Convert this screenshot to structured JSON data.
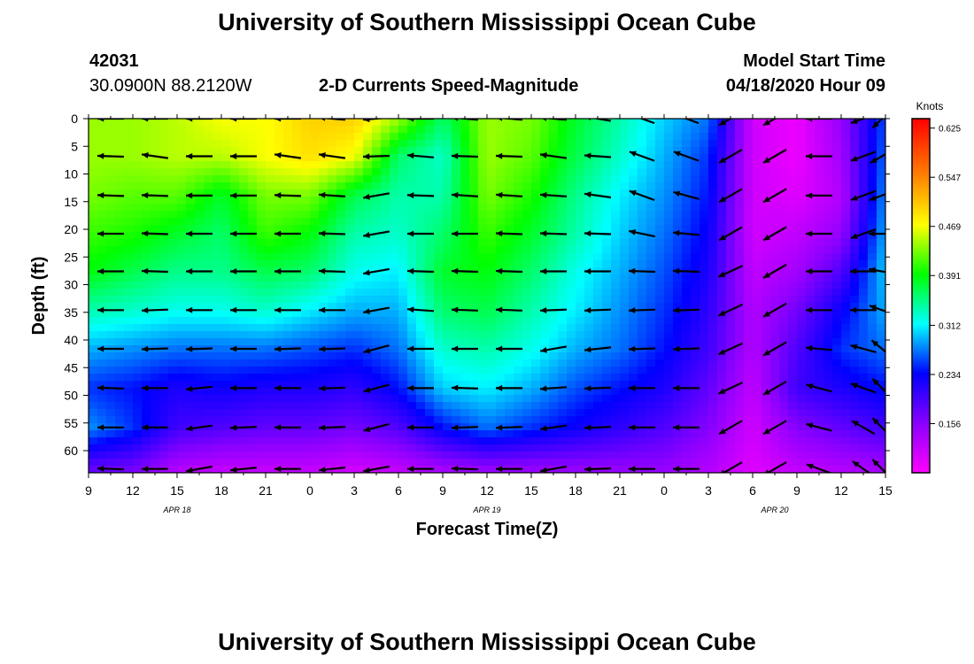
{
  "page": {
    "title_top": "University of Southern Mississippi Ocean Cube",
    "title_bottom": "University of Southern Mississippi Ocean Cube",
    "station_id": "42031",
    "station_location": "30.0900N 88.2120W",
    "model_start_label": "Model Start Time",
    "model_start_value": "04/18/2020 Hour 09"
  },
  "chart_data": {
    "type": "heatmap",
    "title": "2-D Currents Speed-Magnitude",
    "xlabel": "Forecast Time(Z)",
    "ylabel": "Depth (ft)",
    "x_tick_labels": [
      "9",
      "12",
      "15",
      "18",
      "21",
      "0",
      "3",
      "6",
      "9",
      "12",
      "15",
      "18",
      "21",
      "0",
      "3",
      "6",
      "9",
      "12",
      "15"
    ],
    "date_labels": [
      {
        "text": "APR 18",
        "tick_index": 2
      },
      {
        "text": "APR 19",
        "tick_index": 9
      },
      {
        "text": "APR 20",
        "tick_index": 15.5
      }
    ],
    "xlim_hours": [
      0,
      54
    ],
    "y_ticks": [
      0,
      5,
      10,
      15,
      20,
      25,
      30,
      35,
      40,
      45,
      50,
      55,
      60
    ],
    "ylim": [
      0,
      64
    ],
    "y_inverted": true,
    "colorbar": {
      "unit": "Knots",
      "tick_labels": [
        "0.625",
        "0.547",
        "0.469",
        "0.391",
        "0.312",
        "0.234",
        "0.156"
      ],
      "range": [
        0.078,
        0.64
      ]
    },
    "columns_hours": [
      0,
      3,
      6,
      9,
      12,
      15,
      18,
      21,
      24,
      27,
      30,
      33,
      36,
      39,
      42,
      45,
      48,
      51,
      54
    ],
    "row_depths_ft": [
      0,
      6.8,
      13.9,
      20.8,
      27.6,
      34.6,
      41.6,
      48.7,
      55.8,
      63.3
    ],
    "speed_knots": [
      [
        0.44,
        0.44,
        0.45,
        0.47,
        0.47,
        0.5,
        0.5,
        0.44,
        0.36,
        0.44,
        0.43,
        0.38,
        0.34,
        0.3,
        0.27,
        0.11,
        0.09,
        0.15,
        0.26
      ],
      [
        0.44,
        0.44,
        0.45,
        0.45,
        0.47,
        0.49,
        0.47,
        0.36,
        0.33,
        0.44,
        0.42,
        0.37,
        0.33,
        0.29,
        0.25,
        0.11,
        0.09,
        0.14,
        0.27
      ],
      [
        0.43,
        0.42,
        0.42,
        0.38,
        0.43,
        0.43,
        0.37,
        0.34,
        0.34,
        0.43,
        0.4,
        0.35,
        0.31,
        0.28,
        0.24,
        0.11,
        0.1,
        0.13,
        0.28
      ],
      [
        0.41,
        0.4,
        0.38,
        0.36,
        0.41,
        0.39,
        0.34,
        0.33,
        0.36,
        0.41,
        0.38,
        0.34,
        0.3,
        0.27,
        0.23,
        0.11,
        0.12,
        0.15,
        0.29
      ],
      [
        0.39,
        0.37,
        0.35,
        0.35,
        0.37,
        0.36,
        0.32,
        0.31,
        0.38,
        0.39,
        0.36,
        0.32,
        0.29,
        0.26,
        0.22,
        0.12,
        0.14,
        0.19,
        0.3
      ],
      [
        0.34,
        0.33,
        0.32,
        0.32,
        0.33,
        0.31,
        0.29,
        0.29,
        0.36,
        0.37,
        0.34,
        0.31,
        0.28,
        0.25,
        0.21,
        0.13,
        0.17,
        0.23,
        0.29
      ],
      [
        0.29,
        0.28,
        0.27,
        0.27,
        0.27,
        0.26,
        0.25,
        0.27,
        0.33,
        0.34,
        0.32,
        0.29,
        0.27,
        0.24,
        0.2,
        0.13,
        0.19,
        0.25,
        0.27
      ],
      [
        0.25,
        0.24,
        0.22,
        0.23,
        0.22,
        0.22,
        0.21,
        0.24,
        0.3,
        0.31,
        0.29,
        0.26,
        0.24,
        0.22,
        0.18,
        0.12,
        0.2,
        0.22,
        0.24
      ],
      [
        0.28,
        0.25,
        0.2,
        0.19,
        0.18,
        0.18,
        0.17,
        0.19,
        0.24,
        0.27,
        0.25,
        0.23,
        0.21,
        0.19,
        0.16,
        0.11,
        0.16,
        0.18,
        0.2
      ],
      [
        0.18,
        0.17,
        0.13,
        0.12,
        0.12,
        0.12,
        0.11,
        0.12,
        0.14,
        0.15,
        0.15,
        0.15,
        0.15,
        0.15,
        0.13,
        0.1,
        0.12,
        0.13,
        0.14
      ]
    ],
    "vector_rows_depth_ft": [
      0,
      6.8,
      13.9,
      20.8,
      27.6,
      34.6,
      41.6,
      48.7,
      55.8,
      63.3
    ],
    "vector_direction_deg": [
      [
        180,
        180,
        180,
        180,
        180,
        175,
        185,
        180,
        175,
        175,
        175,
        170,
        160,
        160,
        210,
        210,
        180,
        200,
        225
      ],
      [
        178,
        172,
        180,
        180,
        172,
        172,
        182,
        175,
        178,
        178,
        172,
        176,
        160,
        160,
        210,
        210,
        180,
        200,
        210
      ],
      [
        178,
        178,
        180,
        180,
        178,
        176,
        190,
        178,
        176,
        176,
        176,
        172,
        160,
        165,
        210,
        210,
        180,
        200,
        200
      ],
      [
        180,
        178,
        180,
        180,
        180,
        178,
        190,
        180,
        180,
        178,
        178,
        178,
        168,
        175,
        210,
        210,
        180,
        200,
        180
      ],
      [
        180,
        178,
        180,
        180,
        180,
        178,
        190,
        178,
        178,
        178,
        180,
        180,
        178,
        178,
        205,
        210,
        180,
        180,
        170
      ],
      [
        180,
        182,
        180,
        180,
        180,
        180,
        190,
        176,
        178,
        178,
        182,
        182,
        182,
        182,
        205,
        210,
        180,
        180,
        160
      ],
      [
        180,
        182,
        182,
        180,
        182,
        182,
        195,
        180,
        180,
        180,
        190,
        186,
        182,
        182,
        205,
        210,
        175,
        165,
        140
      ],
      [
        178,
        180,
        186,
        180,
        180,
        182,
        195,
        180,
        178,
        180,
        184,
        182,
        180,
        180,
        205,
        210,
        165,
        160,
        135
      ],
      [
        180,
        180,
        188,
        182,
        180,
        182,
        195,
        180,
        182,
        182,
        188,
        182,
        180,
        180,
        210,
        210,
        165,
        150,
        135
      ],
      [
        178,
        180,
        190,
        186,
        180,
        186,
        190,
        180,
        178,
        180,
        190,
        182,
        180,
        180,
        210,
        210,
        160,
        145,
        135
      ]
    ]
  }
}
